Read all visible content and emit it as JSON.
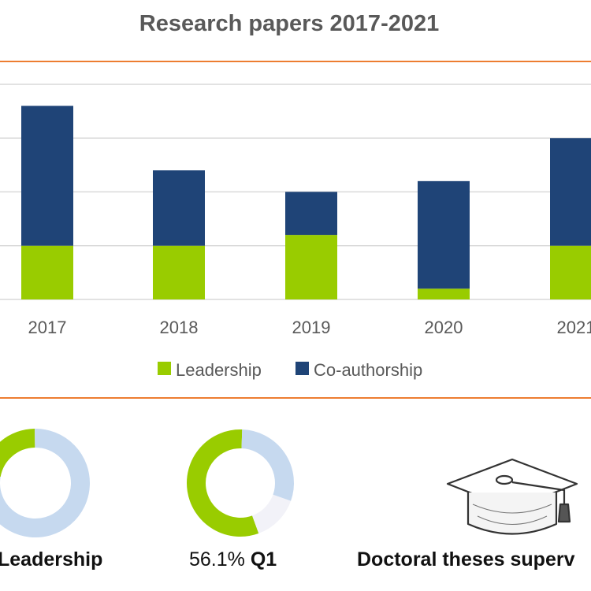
{
  "colors": {
    "leadership": "#99cc00",
    "coauthorship": "#1f4477",
    "gridline": "#d9d9d9",
    "divider": "#ed7d31",
    "donut_light_blue": "#c6d9ef",
    "donut_lighter": "#f2f2f8"
  },
  "chart_data": {
    "type": "bar",
    "stacked": true,
    "title": "Research papers 2017-2021",
    "categories": [
      "2017",
      "2018",
      "2019",
      "2020",
      "2021"
    ],
    "series": [
      {
        "name": "Leadership",
        "values": [
          10,
          10,
          12,
          2,
          10
        ]
      },
      {
        "name": "Co-authorship",
        "values": [
          26,
          14,
          8,
          20,
          20
        ]
      }
    ],
    "ylim": [
      0,
      40
    ],
    "grid": true,
    "legend": "bottom"
  },
  "stats": {
    "leadership": {
      "label": "Leadership",
      "donut": [
        {
          "value": 22,
          "color": "#99cc00"
        },
        {
          "value": 78,
          "color": "#c6d9ef"
        }
      ]
    },
    "q1": {
      "percent": "56.1%",
      "suffix": "Q1",
      "donut": [
        {
          "value": 56.1,
          "color": "#99cc00"
        },
        {
          "value": 29.9,
          "color": "#c6d9ef"
        },
        {
          "value": 14,
          "color": "#f2f2f8"
        }
      ]
    },
    "theses": {
      "label": "Doctoral theses superv"
    }
  }
}
